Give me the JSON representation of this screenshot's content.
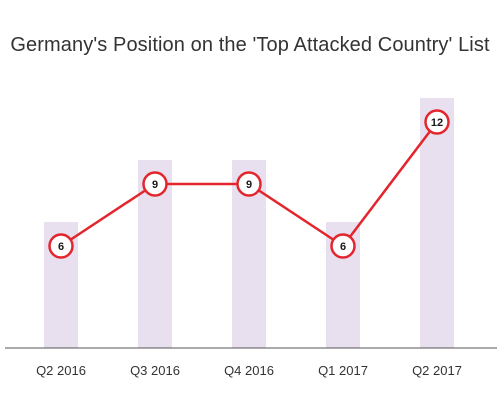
{
  "chart_data": {
    "type": "line",
    "title": "Germany's Position on the 'Top Attacked Country' List",
    "categories": [
      "Q2 2016",
      "Q3 2016",
      "Q4 2016",
      "Q1 2017",
      "Q2 2017"
    ],
    "series": [
      {
        "values": [
          6,
          9,
          9,
          6,
          12
        ]
      }
    ],
    "data_labels": [
      "6",
      "9",
      "9",
      "6",
      "12"
    ],
    "ylim": [
      0,
      12
    ],
    "grid": false,
    "legend": "none",
    "colors": {
      "line": "#e3262d",
      "marker_fill": "#ffffff",
      "background_bars": "#e8e0ef",
      "axis": "#555555"
    }
  }
}
